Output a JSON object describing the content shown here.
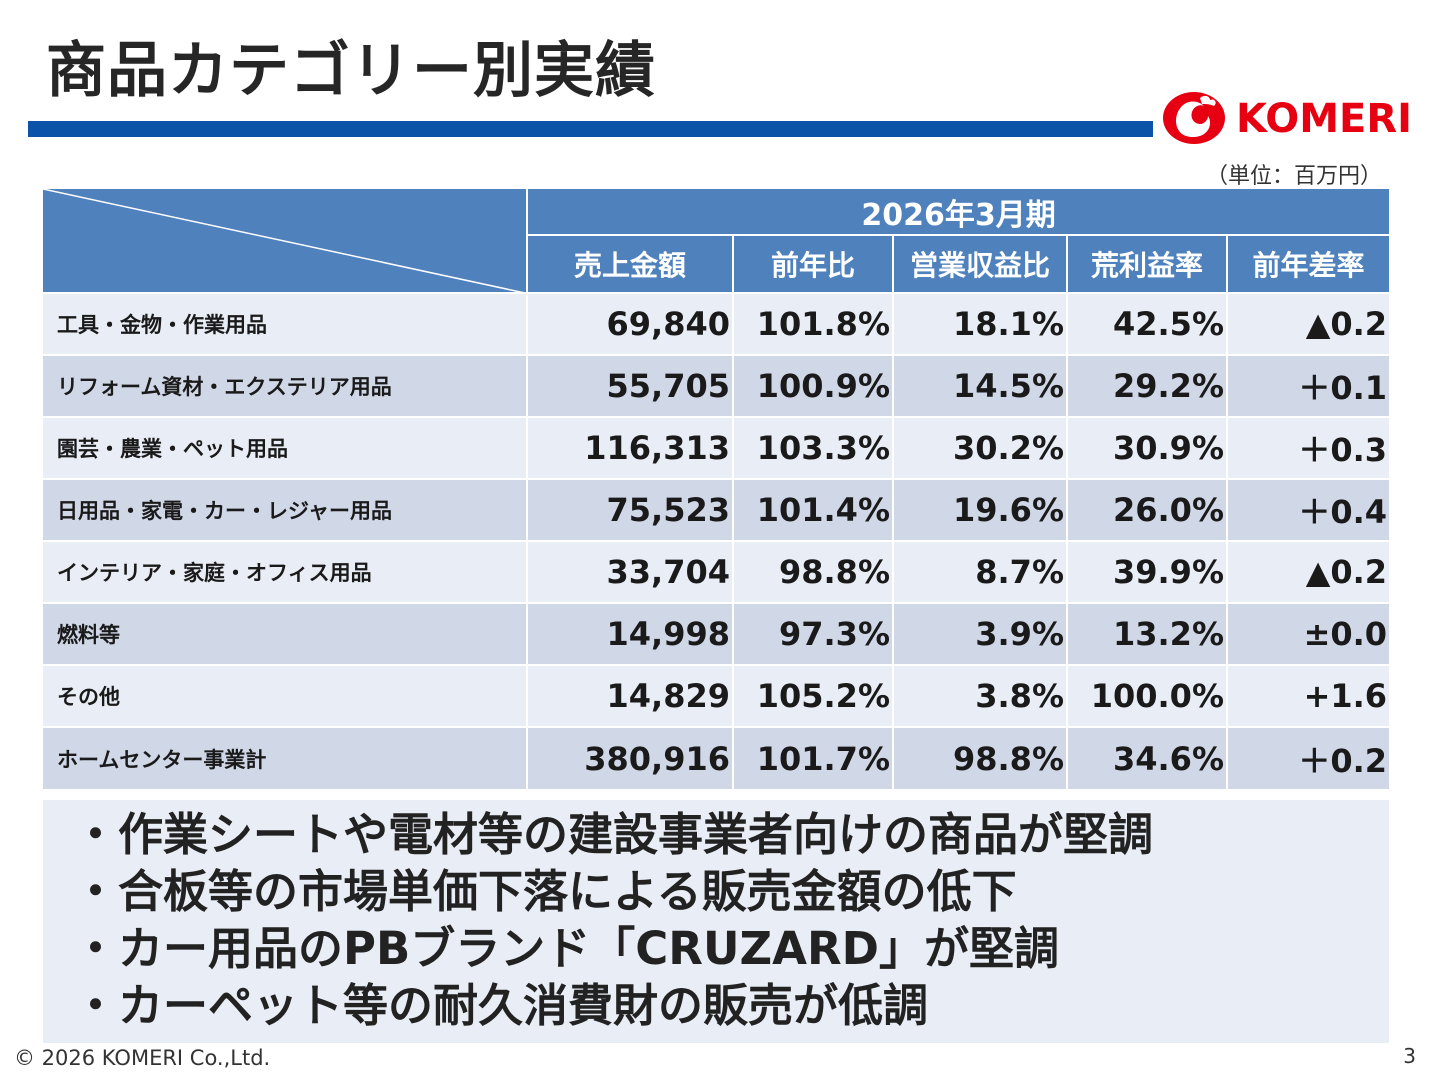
{
  "title": "商品カテゴリー別実績",
  "logo": {
    "text": "KOMERI",
    "color": "#e60012",
    "icon": "rooster-logo-icon"
  },
  "unit": "（単位：百万円）",
  "colors": {
    "accent": "#0a53a8",
    "header": "#4f81bd",
    "row_light": "#e9edf5",
    "row_dark": "#d0d8e8"
  },
  "table": {
    "period": "2026年3月期",
    "columns": [
      "売上金額",
      "前年比",
      "営業収益比",
      "荒利益率",
      "前年差率"
    ],
    "rows": [
      {
        "category": "工具・金物・作業用品",
        "values": [
          "69,840",
          "101.8%",
          "18.1%",
          "42.5%",
          "▲0.2"
        ]
      },
      {
        "category": "リフォーム資材・エクステリア用品",
        "values": [
          "55,705",
          "100.9%",
          "14.5%",
          "29.2%",
          "＋0.1"
        ]
      },
      {
        "category": "園芸・農業・ペット用品",
        "values": [
          "116,313",
          "103.3%",
          "30.2%",
          "30.9%",
          "＋0.3"
        ]
      },
      {
        "category": "日用品・家電・カー・レジャー用品",
        "values": [
          "75,523",
          "101.4%",
          "19.6%",
          "26.0%",
          "＋0.4"
        ]
      },
      {
        "category": "インテリア・家庭・オフィス用品",
        "values": [
          "33,704",
          "98.8%",
          "8.7%",
          "39.9%",
          "▲0.2"
        ]
      },
      {
        "category": "燃料等",
        "values": [
          "14,998",
          "97.3%",
          "3.9%",
          "13.2%",
          "±0.0"
        ]
      },
      {
        "category": "その他",
        "values": [
          "14,829",
          "105.2%",
          "3.8%",
          "100.0%",
          "+1.6"
        ]
      },
      {
        "category": "ホームセンター事業計",
        "values": [
          "380,916",
          "101.7%",
          "98.8%",
          "34.6%",
          "＋0.2"
        ]
      }
    ]
  },
  "comments": [
    "・作業シートや電材等の建設事業者向けの商品が堅調",
    "・合板等の市場単価下落による販売金額の低下",
    "・カー用品のPBブランド「CRUZARD」が堅調",
    "・カーペット等の耐久消費財の販売が低調"
  ],
  "footer": {
    "copyright": "© 2026 KOMERI Co.,Ltd.",
    "page": "3"
  }
}
